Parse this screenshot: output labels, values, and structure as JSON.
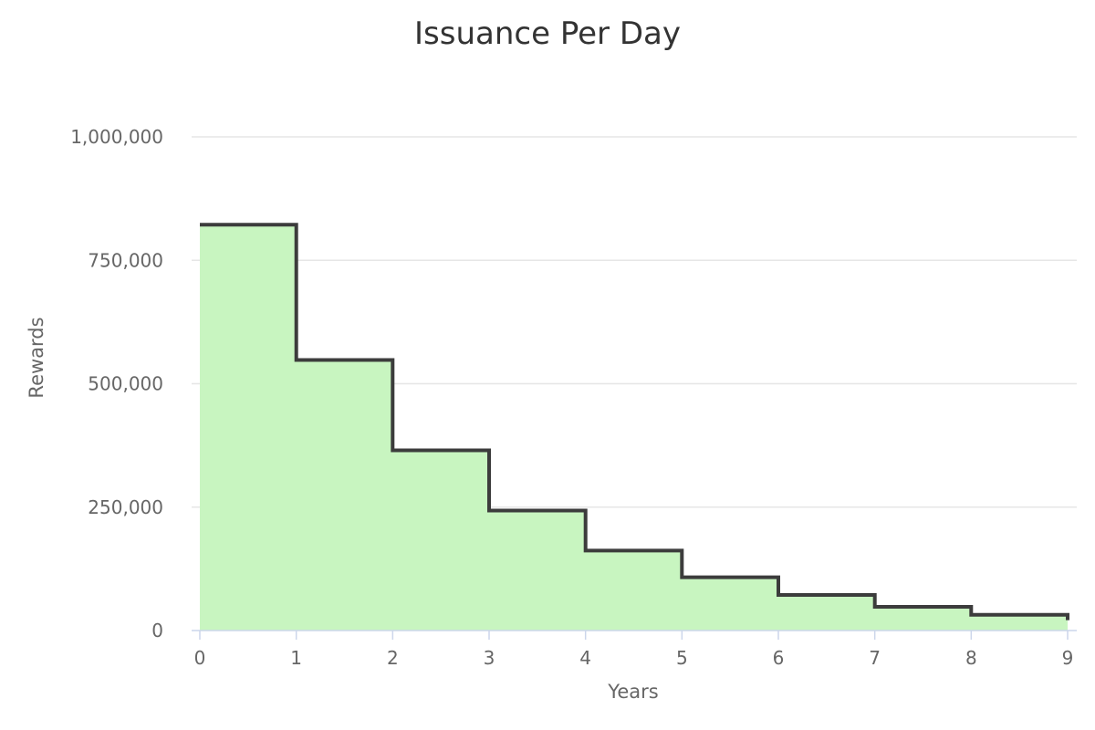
{
  "chart_data": {
    "type": "area",
    "step": true,
    "title": "Issuance Per Day",
    "xlabel": "Years",
    "ylabel": "Rewards",
    "xlim": [
      0,
      9
    ],
    "ylim": [
      0,
      1000000
    ],
    "x_ticks": [
      0,
      1,
      2,
      3,
      4,
      5,
      6,
      7,
      8,
      9
    ],
    "x_tick_labels": [
      "0",
      "1",
      "2",
      "3",
      "4",
      "5",
      "6",
      "7",
      "8",
      "9"
    ],
    "y_ticks": [
      0,
      250000,
      500000,
      750000,
      1000000
    ],
    "y_tick_labels": [
      "0",
      "250,000",
      "500,000",
      "750,000",
      "1,000,000"
    ],
    "grid": true,
    "legend": false,
    "series": [
      {
        "x": [
          0,
          1,
          2,
          3,
          4,
          5,
          6,
          7,
          8,
          9
        ],
        "values": [
          822000,
          548000,
          365000,
          243000,
          162000,
          108000,
          72000,
          48000,
          32000,
          21000
        ],
        "fill_color": "#c8f5c0",
        "line_color": "#3c3c3c"
      }
    ]
  }
}
